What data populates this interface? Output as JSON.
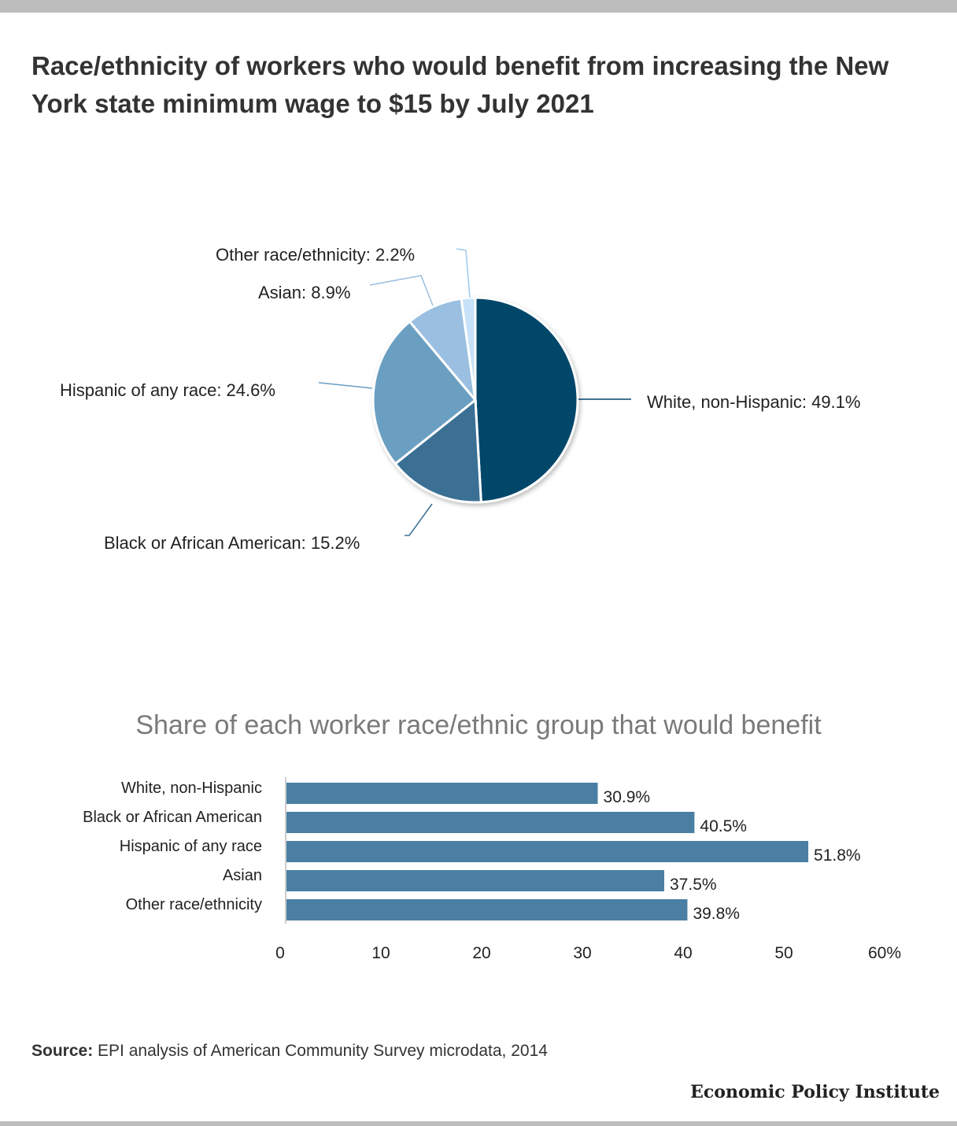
{
  "title": "Race/ethnicity of workers who would benefit from increasing the New York state minimum wage to $15 by July 2021",
  "subtitle": "Share of each worker race/ethnic group that would benefit",
  "source_label": "Source:",
  "source_text": "EPI analysis of American Community Survey microdata, 2014",
  "brand": "Economic Policy Institute",
  "chart_data": [
    {
      "type": "pie",
      "slices": [
        {
          "label": "White, non-Hispanic: 49.1%",
          "value": 49.1,
          "color": "#03466a"
        },
        {
          "label": "Black or African American: 15.2%",
          "value": 15.2,
          "color": "#3a7094"
        },
        {
          "label": "Hispanic of any race: 24.6%",
          "value": 24.6,
          "color": "#6a9fc2"
        },
        {
          "label": "Asian: 8.9%",
          "value": 8.9,
          "color": "#9abfe0"
        },
        {
          "label": "Other race/ethnicity: 2.2%",
          "value": 2.2,
          "color": "#c7e2f8"
        }
      ]
    },
    {
      "type": "bar",
      "orientation": "horizontal",
      "title": "Share of each worker race/ethnic group that would benefit",
      "categories": [
        "White, non-Hispanic",
        "Black or African American",
        "Hispanic of any race",
        "Asian",
        "Other race/ethnicity"
      ],
      "values": [
        30.9,
        40.5,
        51.8,
        37.5,
        39.8
      ],
      "value_labels": [
        "30.9%",
        "40.5%",
        "51.8%",
        "37.5%",
        "39.8%"
      ],
      "xlim": [
        0,
        60
      ],
      "ticks": [
        0,
        10,
        20,
        30,
        40,
        50,
        60
      ],
      "tick_labels": [
        "0",
        "10",
        "20",
        "30",
        "40",
        "50",
        "60%"
      ],
      "color": "#4a7fa3",
      "grid": false
    }
  ]
}
